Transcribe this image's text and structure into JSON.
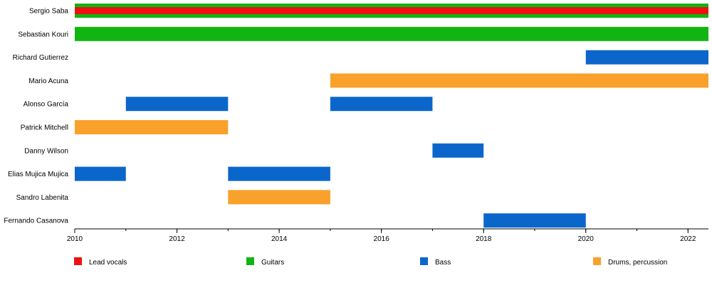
{
  "chart_data": {
    "type": "timeline",
    "x_axis": {
      "min": 2010,
      "max": 2022.4,
      "major_ticks": [
        2010,
        2012,
        2014,
        2016,
        2018,
        2020,
        2022
      ],
      "minor_tick_step": 1
    },
    "members": [
      {
        "name": "Sergio Saba",
        "periods": [
          {
            "role": "Guitars",
            "start": 2010,
            "end": 2022.4
          },
          {
            "role": "Lead vocals",
            "start": 2010,
            "end": 2022.4
          }
        ]
      },
      {
        "name": "Sebastian Kouri",
        "periods": [
          {
            "role": "Guitars",
            "start": 2010,
            "end": 2022.4
          }
        ]
      },
      {
        "name": "Richard Gutierrez",
        "periods": [
          {
            "role": "Bass",
            "start": 2020,
            "end": 2022.4
          }
        ]
      },
      {
        "name": "Mario Acuna",
        "periods": [
          {
            "role": "Drums, percussion",
            "start": 2015,
            "end": 2022.4
          }
        ]
      },
      {
        "name": "Alonso García",
        "periods": [
          {
            "role": "Bass",
            "start": 2011,
            "end": 2013
          },
          {
            "role": "Bass",
            "start": 2015,
            "end": 2017
          }
        ]
      },
      {
        "name": "Patrick Mitchell",
        "periods": [
          {
            "role": "Drums, percussion",
            "start": 2010,
            "end": 2013
          }
        ]
      },
      {
        "name": "Danny Wilson",
        "periods": [
          {
            "role": "Bass",
            "start": 2017,
            "end": 2018
          }
        ]
      },
      {
        "name": "Elias Mujica Mujica",
        "periods": [
          {
            "role": "Bass",
            "start": 2010,
            "end": 2011
          },
          {
            "role": "Bass",
            "start": 2013,
            "end": 2015
          }
        ]
      },
      {
        "name": "Sandro Labenita",
        "periods": [
          {
            "role": "Drums, percussion",
            "start": 2013,
            "end": 2015
          }
        ]
      },
      {
        "name": "Fernando Casanova",
        "periods": [
          {
            "role": "Bass",
            "start": 2018,
            "end": 2020
          }
        ]
      }
    ],
    "legend": [
      {
        "role": "Lead vocals",
        "color": "#ee1111"
      },
      {
        "role": "Guitars",
        "color": "#11b511"
      },
      {
        "role": "Bass",
        "color": "#0b66cc"
      },
      {
        "role": "Drums, percussion",
        "color": "#f9a12b"
      }
    ]
  }
}
